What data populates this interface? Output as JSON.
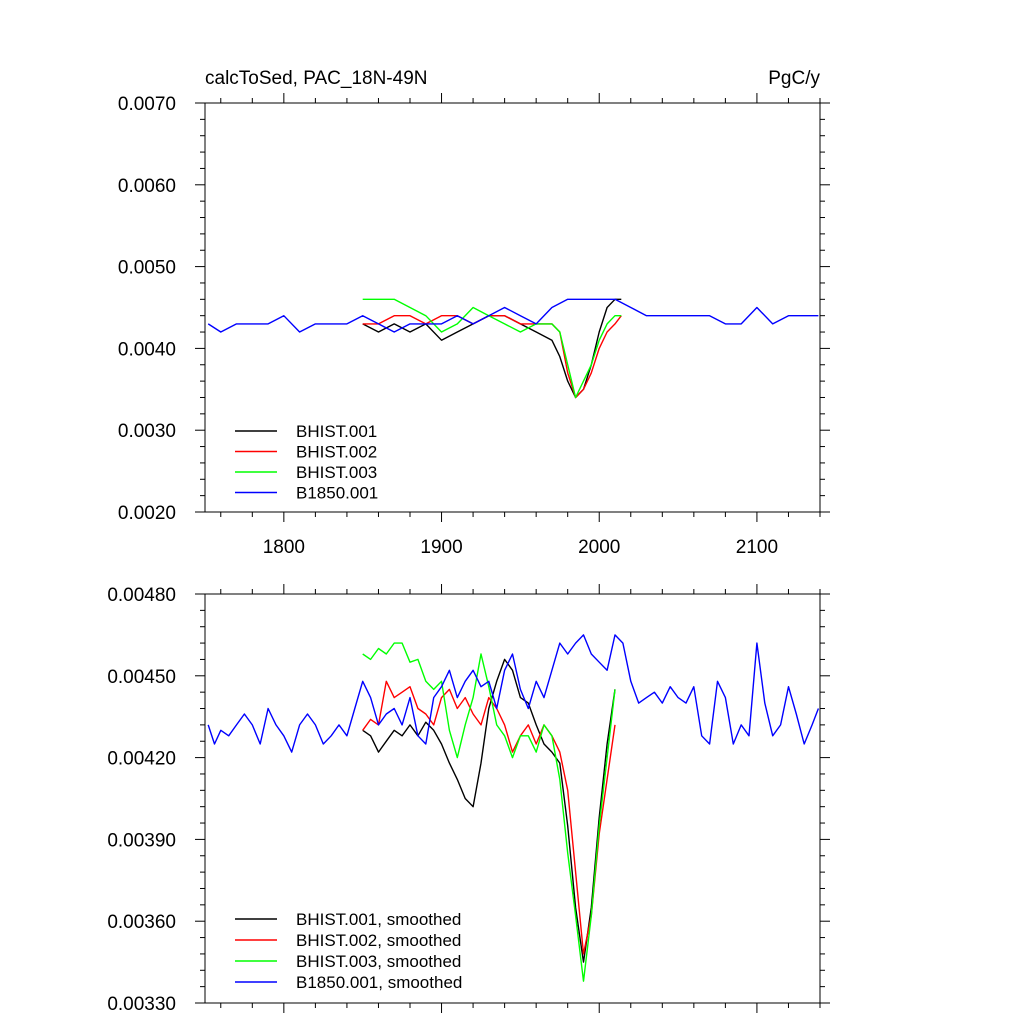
{
  "chart_data": [
    {
      "type": "line",
      "title": "calcToSed, PAC_18N-49N",
      "units": "PgC/y",
      "xlim": [
        1750,
        2140
      ],
      "ylim": [
        0.002,
        0.007
      ],
      "xticks": [
        1800,
        1900,
        2000,
        2100
      ],
      "xtick_labels": [
        "1800",
        "1900",
        "2000",
        "2100"
      ],
      "yticks": [
        0.002,
        0.003,
        0.004,
        0.005,
        0.006,
        0.007
      ],
      "ytick_labels": [
        "0.0020",
        "0.0030",
        "0.0040",
        "0.0050",
        "0.0060",
        "0.0070"
      ],
      "legend_position": "bottom-left",
      "series": [
        {
          "name": "BHIST.001",
          "color": "#000000",
          "x": [
            1850,
            1860,
            1870,
            1880,
            1890,
            1900,
            1910,
            1920,
            1930,
            1940,
            1950,
            1960,
            1970,
            1975,
            1980,
            1985,
            1990,
            1995,
            2000,
            2005,
            2010,
            2014
          ],
          "values": [
            0.0043,
            0.0042,
            0.0043,
            0.0042,
            0.0043,
            0.0041,
            0.0042,
            0.0043,
            0.0044,
            0.0044,
            0.0043,
            0.0042,
            0.0041,
            0.0039,
            0.0036,
            0.0034,
            0.0035,
            0.0038,
            0.0042,
            0.0045,
            0.0046,
            0.0046
          ]
        },
        {
          "name": "BHIST.002",
          "color": "#ff0000",
          "x": [
            1850,
            1860,
            1870,
            1880,
            1890,
            1900,
            1910,
            1920,
            1930,
            1940,
            1950,
            1960,
            1970,
            1975,
            1980,
            1985,
            1990,
            1995,
            2000,
            2005,
            2010,
            2014
          ],
          "values": [
            0.0043,
            0.0043,
            0.0044,
            0.0044,
            0.0043,
            0.0044,
            0.0044,
            0.0043,
            0.0044,
            0.0044,
            0.0043,
            0.0043,
            0.0043,
            0.0042,
            0.0037,
            0.0034,
            0.0035,
            0.0037,
            0.004,
            0.0042,
            0.0043,
            0.0044
          ]
        },
        {
          "name": "BHIST.003",
          "color": "#00ff00",
          "x": [
            1850,
            1860,
            1870,
            1880,
            1890,
            1900,
            1910,
            1920,
            1930,
            1940,
            1950,
            1960,
            1970,
            1975,
            1980,
            1985,
            1990,
            1995,
            2000,
            2005,
            2010,
            2014
          ],
          "values": [
            0.0046,
            0.0046,
            0.0046,
            0.0045,
            0.0044,
            0.0042,
            0.0043,
            0.0045,
            0.0044,
            0.0043,
            0.0042,
            0.0043,
            0.0043,
            0.0042,
            0.0038,
            0.0034,
            0.0036,
            0.0038,
            0.0041,
            0.0043,
            0.0044,
            0.0044
          ]
        },
        {
          "name": "B1850.001",
          "color": "#0000ff",
          "x": [
            1752,
            1760,
            1770,
            1780,
            1790,
            1800,
            1810,
            1820,
            1830,
            1840,
            1850,
            1860,
            1870,
            1880,
            1890,
            1900,
            1910,
            1920,
            1930,
            1940,
            1950,
            1960,
            1970,
            1980,
            1990,
            2000,
            2010,
            2020,
            2030,
            2040,
            2050,
            2060,
            2070,
            2080,
            2090,
            2100,
            2110,
            2120,
            2130,
            2139
          ],
          "values": [
            0.0043,
            0.0042,
            0.0043,
            0.0043,
            0.0043,
            0.0044,
            0.0042,
            0.0043,
            0.0043,
            0.0043,
            0.0044,
            0.0043,
            0.0042,
            0.0043,
            0.0043,
            0.0043,
            0.0044,
            0.0043,
            0.0044,
            0.0045,
            0.0044,
            0.0043,
            0.0045,
            0.0046,
            0.0046,
            0.0046,
            0.0046,
            0.0045,
            0.0044,
            0.0044,
            0.0044,
            0.0044,
            0.0044,
            0.0043,
            0.0043,
            0.0045,
            0.0043,
            0.0044,
            0.0044,
            0.0044
          ]
        }
      ]
    },
    {
      "type": "line",
      "xlim": [
        1750,
        2140
      ],
      "ylim": [
        0.0033,
        0.0048
      ],
      "xticks": [
        1800,
        1900,
        2000,
        2100
      ],
      "yticks": [
        0.0033,
        0.0036,
        0.0039,
        0.0042,
        0.0045,
        0.0048
      ],
      "ytick_labels": [
        "0.00330",
        "0.00360",
        "0.00390",
        "0.00420",
        "0.00450",
        "0.00480"
      ],
      "legend_position": "bottom-left",
      "series": [
        {
          "name": "BHIST.001, smoothed",
          "color": "#000000",
          "x": [
            1850,
            1855,
            1860,
            1865,
            1870,
            1875,
            1880,
            1885,
            1890,
            1895,
            1900,
            1905,
            1910,
            1915,
            1920,
            1925,
            1930,
            1935,
            1940,
            1945,
            1950,
            1955,
            1960,
            1965,
            1970,
            1975,
            1980,
            1985,
            1990,
            1995,
            2000,
            2005,
            2010
          ],
          "values": [
            0.0043,
            0.00428,
            0.00422,
            0.00426,
            0.0043,
            0.00428,
            0.00432,
            0.00428,
            0.00433,
            0.0043,
            0.00425,
            0.00418,
            0.00412,
            0.00405,
            0.00402,
            0.00418,
            0.00438,
            0.00448,
            0.00456,
            0.00452,
            0.00442,
            0.0044,
            0.00432,
            0.00425,
            0.00422,
            0.00418,
            0.00395,
            0.00365,
            0.00345,
            0.00365,
            0.00398,
            0.00425,
            0.00445
          ]
        },
        {
          "name": "BHIST.002, smoothed",
          "color": "#ff0000",
          "x": [
            1850,
            1855,
            1860,
            1865,
            1870,
            1875,
            1880,
            1885,
            1890,
            1895,
            1900,
            1905,
            1910,
            1915,
            1920,
            1925,
            1930,
            1935,
            1940,
            1945,
            1950,
            1955,
            1960,
            1965,
            1970,
            1975,
            1980,
            1985,
            1990,
            1995,
            2000,
            2005,
            2010
          ],
          "values": [
            0.0043,
            0.00434,
            0.00432,
            0.00448,
            0.00442,
            0.00444,
            0.00446,
            0.00438,
            0.00436,
            0.00432,
            0.00442,
            0.00445,
            0.00438,
            0.00442,
            0.00436,
            0.00432,
            0.00442,
            0.00438,
            0.00432,
            0.00422,
            0.00428,
            0.00432,
            0.00425,
            0.00432,
            0.00428,
            0.00422,
            0.00408,
            0.00378,
            0.00348,
            0.00362,
            0.00392,
            0.00412,
            0.00432
          ]
        },
        {
          "name": "BHIST.003, smoothed",
          "color": "#00ff00",
          "x": [
            1850,
            1855,
            1860,
            1865,
            1870,
            1875,
            1880,
            1885,
            1890,
            1895,
            1900,
            1905,
            1910,
            1915,
            1920,
            1925,
            1930,
            1935,
            1940,
            1945,
            1950,
            1955,
            1960,
            1965,
            1970,
            1975,
            1980,
            1985,
            1990,
            1995,
            2000,
            2005,
            2010
          ],
          "values": [
            0.00458,
            0.00456,
            0.0046,
            0.00458,
            0.00462,
            0.00462,
            0.00455,
            0.00456,
            0.00448,
            0.00445,
            0.00448,
            0.0043,
            0.0042,
            0.00432,
            0.00442,
            0.00458,
            0.00446,
            0.00432,
            0.00428,
            0.0042,
            0.00428,
            0.00428,
            0.00422,
            0.00432,
            0.00428,
            0.00412,
            0.00385,
            0.00362,
            0.00338,
            0.00362,
            0.00395,
            0.0042,
            0.00445
          ]
        },
        {
          "name": "B1850.001, smoothed",
          "color": "#0000ff",
          "x": [
            1752,
            1756,
            1760,
            1765,
            1770,
            1775,
            1780,
            1785,
            1790,
            1795,
            1800,
            1805,
            1810,
            1815,
            1820,
            1825,
            1830,
            1835,
            1840,
            1845,
            1850,
            1855,
            1860,
            1865,
            1870,
            1875,
            1880,
            1885,
            1890,
            1895,
            1900,
            1905,
            1910,
            1915,
            1920,
            1925,
            1930,
            1935,
            1940,
            1945,
            1950,
            1955,
            1960,
            1965,
            1970,
            1975,
            1980,
            1985,
            1990,
            1995,
            2000,
            2005,
            2010,
            2015,
            2020,
            2025,
            2030,
            2035,
            2040,
            2045,
            2050,
            2055,
            2060,
            2065,
            2070,
            2075,
            2080,
            2085,
            2090,
            2095,
            2100,
            2105,
            2110,
            2115,
            2120,
            2125,
            2130,
            2135,
            2139
          ],
          "values": [
            0.00432,
            0.00425,
            0.0043,
            0.00428,
            0.00432,
            0.00436,
            0.00432,
            0.00425,
            0.00438,
            0.00432,
            0.00428,
            0.00422,
            0.00432,
            0.00436,
            0.00432,
            0.00425,
            0.00428,
            0.00432,
            0.00428,
            0.00438,
            0.00448,
            0.00442,
            0.00432,
            0.00436,
            0.00438,
            0.00432,
            0.00442,
            0.00428,
            0.00425,
            0.00442,
            0.00446,
            0.00452,
            0.00442,
            0.00448,
            0.00452,
            0.00446,
            0.00448,
            0.00438,
            0.00452,
            0.00458,
            0.00445,
            0.00438,
            0.00448,
            0.00442,
            0.00452,
            0.00462,
            0.00458,
            0.00462,
            0.00465,
            0.00458,
            0.00455,
            0.00452,
            0.00465,
            0.00462,
            0.00448,
            0.0044,
            0.00442,
            0.00444,
            0.0044,
            0.00446,
            0.00442,
            0.0044,
            0.00446,
            0.00428,
            0.00425,
            0.00448,
            0.00442,
            0.00425,
            0.00432,
            0.00428,
            0.00462,
            0.0044,
            0.00428,
            0.00432,
            0.00446,
            0.00436,
            0.00425,
            0.00432,
            0.00438
          ]
        }
      ]
    }
  ]
}
